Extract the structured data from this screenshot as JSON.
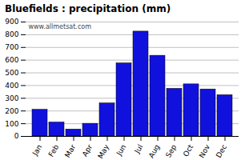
{
  "chart_data": {
    "type": "bar",
    "title": "Bluefields : precipitation (mm)",
    "categories": [
      "Jan",
      "Feb",
      "Mar",
      "Apr",
      "May",
      "Jun",
      "Jul",
      "Aug",
      "Sep",
      "Oct",
      "Nov",
      "Dec"
    ],
    "values": [
      210,
      110,
      55,
      100,
      260,
      575,
      825,
      635,
      375,
      410,
      370,
      325
    ],
    "color": "#1111DD",
    "ylim": [
      0,
      900
    ],
    "yticks": [
      0,
      100,
      200,
      300,
      400,
      500,
      600,
      700,
      800,
      900
    ],
    "grid": true,
    "annotations": [
      "www.allmetsat.com"
    ]
  }
}
